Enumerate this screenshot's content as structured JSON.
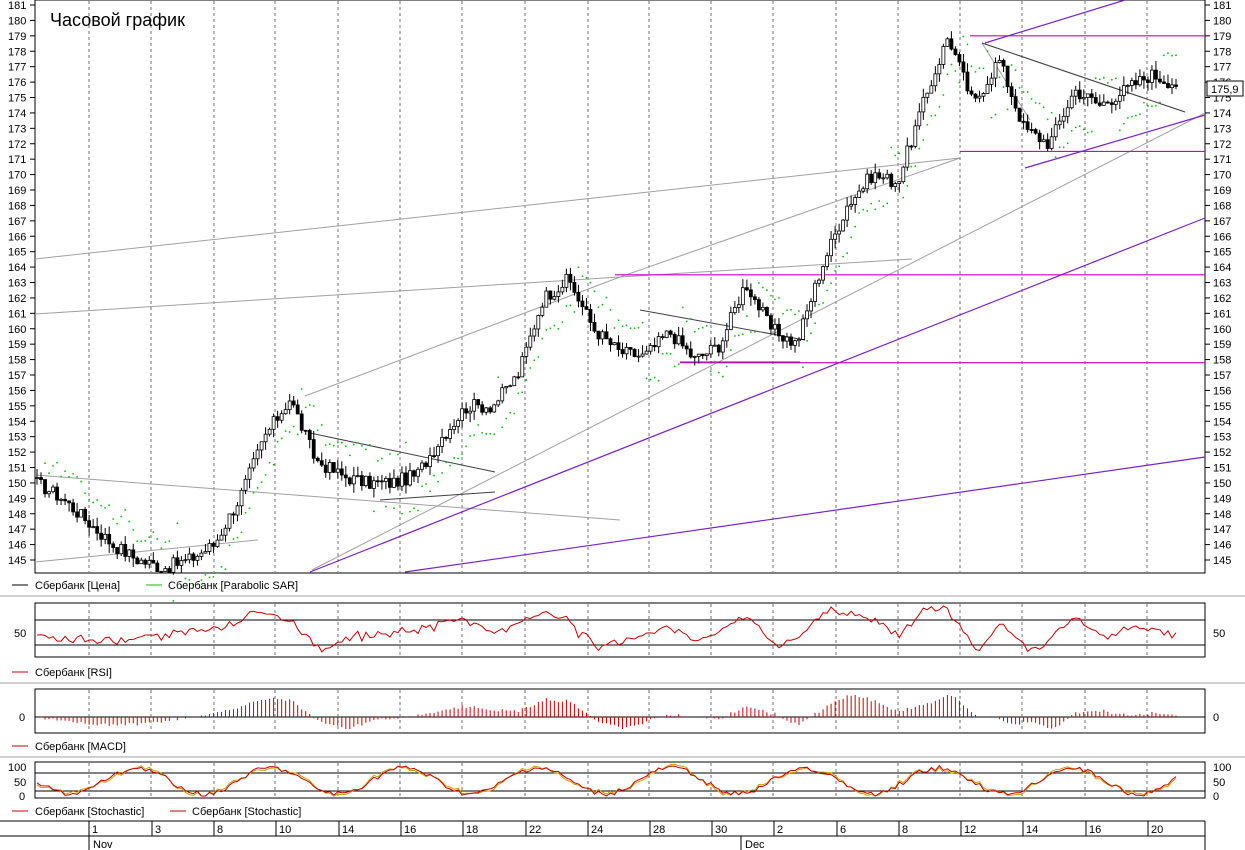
{
  "title": "Часовой график",
  "last_price": "175,9",
  "legends": {
    "price": [
      "Сбербанк [Цена]",
      "Сбербанк [Parabolic SAR]"
    ],
    "rsi": [
      "Сбербанк [RSI]"
    ],
    "macd": [
      "Сбербанк [MACD]"
    ],
    "stoch": [
      "Сбербанк [Stochastic]",
      "Сбербанк [Stochastic]"
    ]
  },
  "colors": {
    "price": "#000000",
    "sar": "#00c000",
    "indicator": "#cc0000",
    "resistance": "#cc00cc",
    "trend": "#7a1fd0",
    "aux": "#a0a0a0",
    "stoch_d": "#c8a000"
  },
  "indicator_ticks": {
    "rsi": [
      "50",
      "50"
    ],
    "macd": [
      "0",
      "0"
    ],
    "stoch_left": [
      "100",
      "50",
      "0"
    ],
    "stoch_right": [
      "100",
      "50",
      "0"
    ]
  },
  "chart_data": [
    {
      "type": "candlestick",
      "title": "Часовой график",
      "ylim": [
        144,
        182
      ],
      "y_ticks": [
        145,
        146,
        147,
        148,
        149,
        150,
        151,
        152,
        153,
        154,
        155,
        156,
        157,
        158,
        159,
        160,
        161,
        162,
        163,
        164,
        165,
        166,
        167,
        168,
        169,
        170,
        171,
        172,
        173,
        174,
        175,
        176,
        177,
        178,
        179,
        180,
        181
      ],
      "x_day_labels": [
        "1",
        "3",
        "8",
        "10",
        "14",
        "16",
        "18",
        "22",
        "24",
        "28",
        "30",
        "2",
        "6",
        "8",
        "12",
        "14",
        "16",
        "20"
      ],
      "x_month_labels": [
        "Nov",
        "Dec"
      ],
      "anchor_closes": [
        150,
        149,
        147.5,
        146,
        145,
        144.5,
        145,
        146,
        149,
        153,
        155.5,
        151.5,
        150.5,
        150,
        150,
        150.5,
        153,
        155,
        155,
        157,
        162,
        163.2,
        160,
        158.5,
        158.2,
        159.8,
        158,
        159,
        163,
        160,
        159,
        164,
        168,
        170,
        169.5,
        174.5,
        179,
        174.5,
        177.5,
        173,
        172,
        175.5,
        174.5,
        175.5,
        176.5,
        175.9
      ],
      "horizontal_levels": [
        179,
        171.5,
        163.5,
        157.8
      ],
      "series": [
        {
          "name": "Сбербанк [Цена]"
        },
        {
          "name": "Сбербанк [Parabolic SAR]"
        }
      ]
    },
    {
      "type": "line",
      "series": [
        {
          "name": "Сбербанк [RSI]"
        }
      ],
      "y_ticks": [
        50
      ]
    },
    {
      "type": "bar",
      "series": [
        {
          "name": "Сбербанк [MACD]"
        }
      ],
      "y_ticks": [
        0
      ]
    },
    {
      "type": "line",
      "series": [
        {
          "name": "Сбербанк [Stochastic]"
        },
        {
          "name": "Сбербанк [Stochastic]"
        }
      ],
      "y_ticks": [
        100,
        50,
        0
      ]
    }
  ]
}
